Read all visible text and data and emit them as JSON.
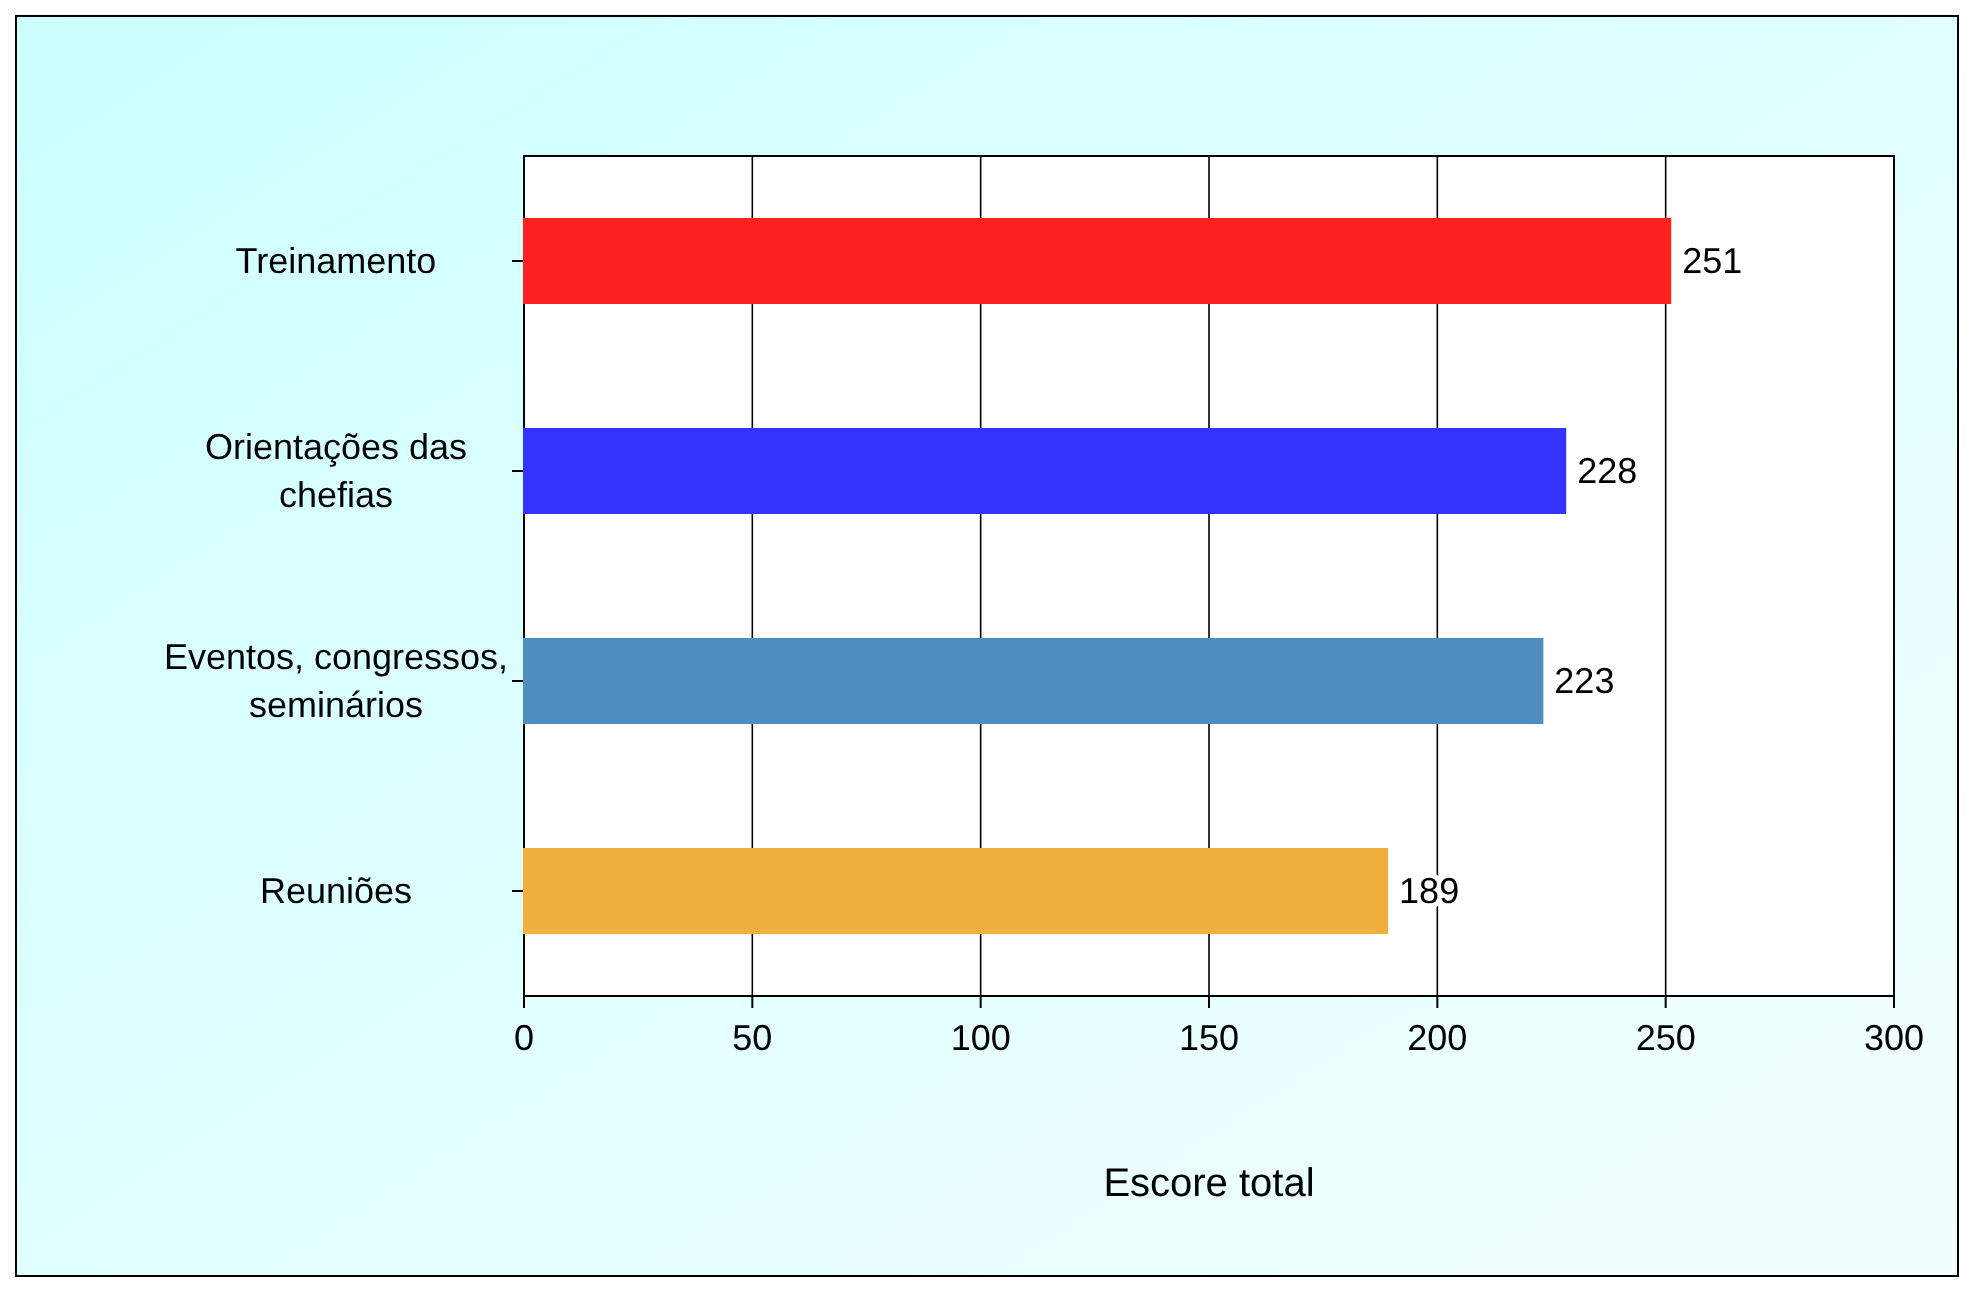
{
  "chart_data": {
    "type": "bar",
    "orientation": "horizontal",
    "categories": [
      "Treinamento",
      "Orientações das chefias",
      "Eventos, congressos, seminários",
      "Reuniões"
    ],
    "values": [
      251,
      228,
      223,
      189
    ],
    "colors": [
      "#ff2020",
      "#3333ff",
      "#4f8fbf",
      "#f0b040"
    ],
    "xlim": [
      0,
      300
    ],
    "xticks": [
      0,
      50,
      100,
      150,
      200,
      250,
      300
    ],
    "xlabel": "Escore total",
    "grid": "x",
    "data_labels": true
  }
}
